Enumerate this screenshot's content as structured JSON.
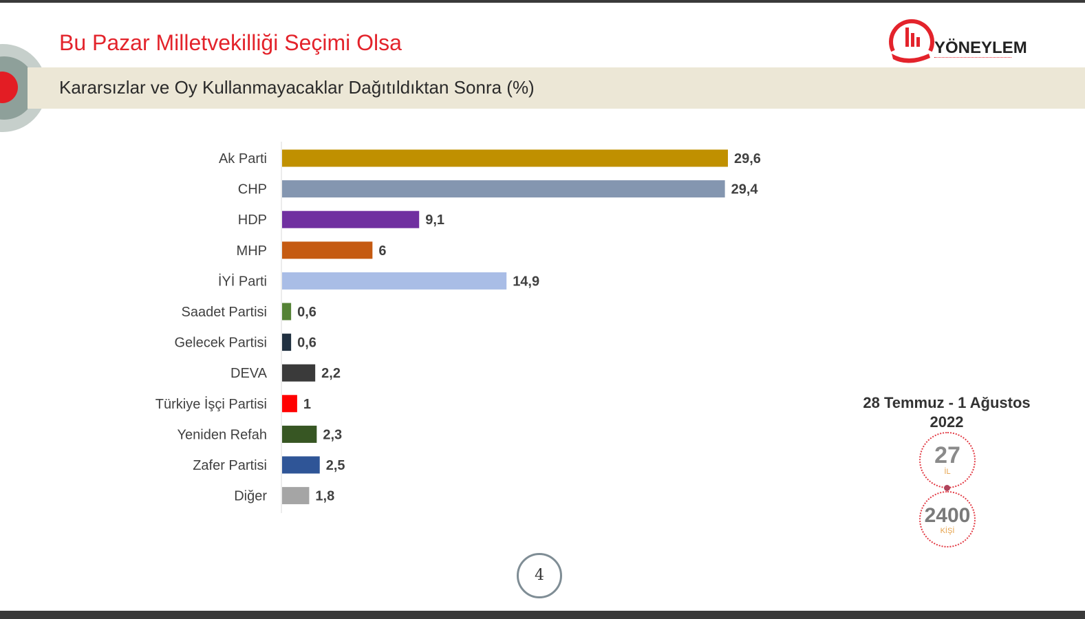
{
  "header": {
    "title": "Bu Pazar Milletvekilliği Seçimi Olsa",
    "subtitle": "Kararsızlar ve Oy Kullanmayacaklar Dağıtıldıktan Sonra (%)"
  },
  "logo": {
    "name": "YÖNEYLEM",
    "icon": "hand-bars-logo-icon",
    "color": "#e3232b"
  },
  "survey": {
    "date_line1": "28 Temmuz - 1 Ağustos",
    "date_line2": "2022",
    "provinces": "27",
    "provinces_unit": "İL",
    "people": "2400",
    "people_unit": "KİŞİ"
  },
  "page": {
    "number": "4"
  },
  "chart_data": {
    "type": "bar",
    "orientation": "horizontal",
    "title": "Kararsızlar ve Oy Kullanmayacaklar Dağıtıldıktan Sonra (%)",
    "grid": false,
    "categories": [
      "Ak Parti",
      "CHP",
      "HDP",
      "MHP",
      "İYİ Parti",
      "Saadet Partisi",
      "Gelecek Partisi",
      "DEVA",
      "Türkiye İşçi Partisi",
      "Yeniden Refah",
      "Zafer Partisi",
      "Diğer"
    ],
    "values": [
      29.6,
      29.4,
      9.1,
      6,
      14.9,
      0.6,
      0.6,
      2.2,
      1,
      2.3,
      2.5,
      1.8
    ],
    "value_labels": [
      "29,6",
      "29,4",
      "9,1",
      "6",
      "14,9",
      "0,6",
      "0,6",
      "2,2",
      "1",
      "2,3",
      "2,5",
      "1,8"
    ],
    "colors": [
      "#c09000",
      "#8496b0",
      "#7030a0",
      "#c55a11",
      "#a9bde6",
      "#548235",
      "#203040",
      "#3a3a3a",
      "#ff0000",
      "#375623",
      "#2f5597",
      "#a5a5a5"
    ],
    "xlim": [
      0,
      29.6
    ]
  }
}
